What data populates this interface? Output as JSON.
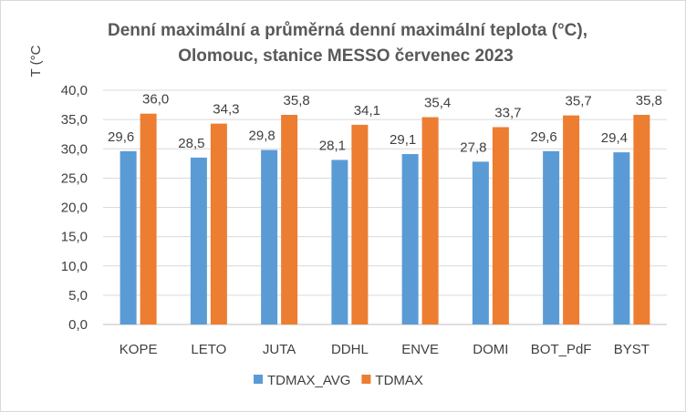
{
  "chart_data": {
    "type": "bar",
    "title_lines": [
      "Denní maximální a průměrná denní maximální teplota (°C),",
      "Olomouc, stanice MESSO červenec 2023"
    ],
    "ylabel": "T (°C",
    "xlabel": "",
    "ylim": [
      0,
      40
    ],
    "ytick_step": 5,
    "ytick_labels": [
      "0,0",
      "5,0",
      "10,0",
      "15,0",
      "20,0",
      "25,0",
      "30,0",
      "35,0",
      "40,0"
    ],
    "grid": true,
    "legend_position": "bottom",
    "categories": [
      "KOPE",
      "LETO",
      "JUTA",
      "DDHL",
      "ENVE",
      "DOMI",
      "BOT_PdF",
      "BYST"
    ],
    "series": [
      {
        "name": "TDMAX_AVG",
        "color": "#5b9bd5",
        "values": [
          29.6,
          28.5,
          29.8,
          28.1,
          29.1,
          27.8,
          29.6,
          29.4
        ],
        "labels": [
          "29,6",
          "28,5",
          "29,8",
          "28,1",
          "29,1",
          "27,8",
          "29,6",
          "29,4"
        ]
      },
      {
        "name": "TDMAX",
        "color": "#ed7d31",
        "values": [
          36.0,
          34.3,
          35.8,
          34.1,
          35.4,
          33.7,
          35.7,
          35.8
        ],
        "labels": [
          "36,0",
          "34,3",
          "35,8",
          "34,1",
          "35,4",
          "33,7",
          "35,7",
          "35,8"
        ]
      }
    ]
  }
}
